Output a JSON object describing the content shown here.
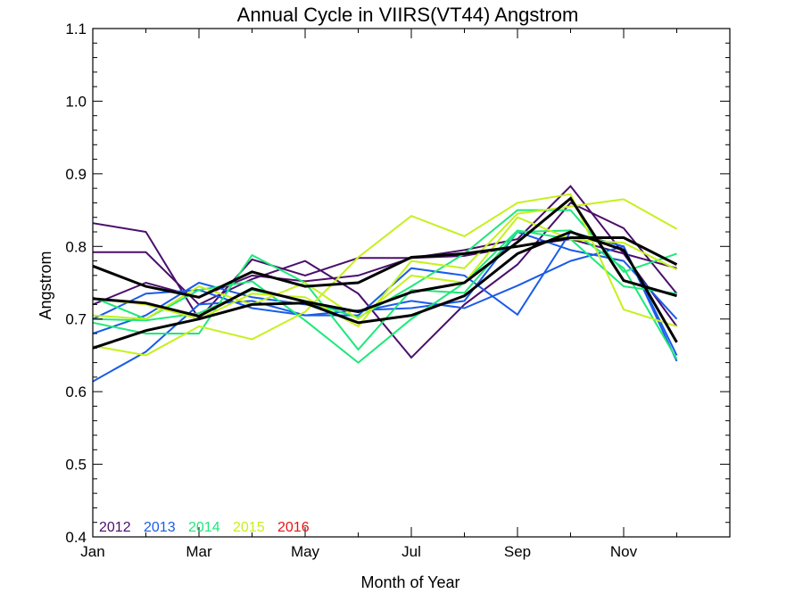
{
  "chart_data": {
    "type": "line",
    "title": "Annual Cycle in VIIRS(VT44) Angstrom",
    "xlabel": "Month of Year",
    "ylabel": "Angstrom",
    "xlim": [
      1,
      13
    ],
    "ylim": [
      0.4,
      1.1
    ],
    "x_ticks": [
      {
        "value": 1,
        "label": "Jan"
      },
      {
        "value": 3,
        "label": "Mar"
      },
      {
        "value": 5,
        "label": "May"
      },
      {
        "value": 7,
        "label": "Jul"
      },
      {
        "value": 9,
        "label": "Sep"
      },
      {
        "value": 11,
        "label": "Nov"
      }
    ],
    "y_ticks": [
      {
        "value": 0.4,
        "label": "0.4"
      },
      {
        "value": 0.5,
        "label": "0.5"
      },
      {
        "value": 0.6,
        "label": "0.6"
      },
      {
        "value": 0.7,
        "label": "0.7"
      },
      {
        "value": 0.8,
        "label": "0.8"
      },
      {
        "value": 0.9,
        "label": "0.9"
      },
      {
        "value": 1.0,
        "label": "1.0"
      },
      {
        "value": 1.1,
        "label": "1.1"
      }
    ],
    "x": [
      1,
      2,
      3,
      4,
      5,
      6,
      7,
      8,
      9,
      10,
      11,
      12
    ],
    "legend": [
      {
        "label": "2012",
        "color": "#4b0f6b"
      },
      {
        "label": "2013",
        "color": "#1a5ce8"
      },
      {
        "label": "2014",
        "color": "#1de87a"
      },
      {
        "label": "2015",
        "color": "#c6f01c"
      },
      {
        "label": "2016",
        "color": "#e81414"
      }
    ],
    "series": [
      {
        "group": "2012",
        "color": "#4b0f6b",
        "width": 2,
        "values": [
          0.832,
          0.82,
          0.7,
          0.782,
          0.76,
          0.784,
          0.784,
          0.795,
          0.81,
          0.883,
          0.79,
          0.77
        ]
      },
      {
        "group": "2012",
        "color": "#4b0f6b",
        "width": 2,
        "values": [
          0.792,
          0.792,
          0.72,
          0.755,
          0.78,
          0.735,
          0.647,
          0.72,
          0.775,
          0.86,
          0.825,
          0.735
        ]
      },
      {
        "group": "2012",
        "color": "#4b0f6b",
        "width": 2,
        "values": [
          0.72,
          0.75,
          0.73,
          0.76,
          0.752,
          0.76,
          0.784,
          0.787,
          0.8,
          0.81,
          0.79,
          0.69
        ]
      },
      {
        "group": "2013",
        "color": "#1a5ce8",
        "width": 2,
        "values": [
          0.614,
          0.655,
          0.72,
          0.725,
          0.705,
          0.705,
          0.77,
          0.76,
          0.706,
          0.82,
          0.8,
          0.65
        ]
      },
      {
        "group": "2013",
        "color": "#1a5ce8",
        "width": 2,
        "values": [
          0.68,
          0.705,
          0.75,
          0.73,
          0.72,
          0.71,
          0.725,
          0.715,
          0.746,
          0.78,
          0.8,
          0.642
        ]
      },
      {
        "group": "2013",
        "color": "#1a5ce8",
        "width": 2,
        "values": [
          0.7,
          0.735,
          0.74,
          0.715,
          0.705,
          0.712,
          0.715,
          0.725,
          0.82,
          0.795,
          0.78,
          0.7
        ]
      },
      {
        "group": "2014",
        "color": "#1de87a",
        "width": 2,
        "values": [
          0.695,
          0.68,
          0.68,
          0.788,
          0.75,
          0.658,
          0.74,
          0.736,
          0.82,
          0.822,
          0.77,
          0.645
        ]
      },
      {
        "group": "2014",
        "color": "#1de87a",
        "width": 2,
        "values": [
          0.73,
          0.7,
          0.74,
          0.752,
          0.698,
          0.64,
          0.7,
          0.75,
          0.822,
          0.81,
          0.745,
          0.735
        ]
      },
      {
        "group": "2014",
        "color": "#1de87a",
        "width": 2,
        "values": [
          0.7,
          0.698,
          0.708,
          0.74,
          0.725,
          0.702,
          0.745,
          0.79,
          0.85,
          0.85,
          0.765,
          0.79
        ]
      },
      {
        "group": "2015",
        "color": "#c6f01c",
        "width": 2,
        "values": [
          0.663,
          0.65,
          0.69,
          0.672,
          0.71,
          0.785,
          0.842,
          0.814,
          0.86,
          0.872,
          0.713,
          0.69
        ]
      },
      {
        "group": "2015",
        "color": "#c6f01c",
        "width": 2,
        "values": [
          0.728,
          0.72,
          0.7,
          0.735,
          0.73,
          0.69,
          0.78,
          0.77,
          0.845,
          0.855,
          0.865,
          0.824
        ]
      },
      {
        "group": "2015",
        "color": "#c6f01c",
        "width": 2,
        "values": [
          0.705,
          0.7,
          0.745,
          0.72,
          0.75,
          0.7,
          0.76,
          0.75,
          0.84,
          0.81,
          0.805,
          0.768
        ]
      },
      {
        "group": "mean",
        "color": "#000000",
        "width": 3,
        "values": [
          0.773,
          0.745,
          0.73,
          0.765,
          0.745,
          0.75,
          0.785,
          0.79,
          0.8,
          0.812,
          0.812,
          0.775
        ]
      },
      {
        "group": "mean",
        "color": "#000000",
        "width": 3,
        "values": [
          0.728,
          0.722,
          0.704,
          0.742,
          0.724,
          0.71,
          0.737,
          0.75,
          0.806,
          0.866,
          0.753,
          0.732
        ]
      },
      {
        "group": "mean",
        "color": "#000000",
        "width": 3,
        "values": [
          0.66,
          0.684,
          0.7,
          0.72,
          0.722,
          0.695,
          0.705,
          0.732,
          0.79,
          0.82,
          0.795,
          0.668
        ]
      }
    ]
  }
}
